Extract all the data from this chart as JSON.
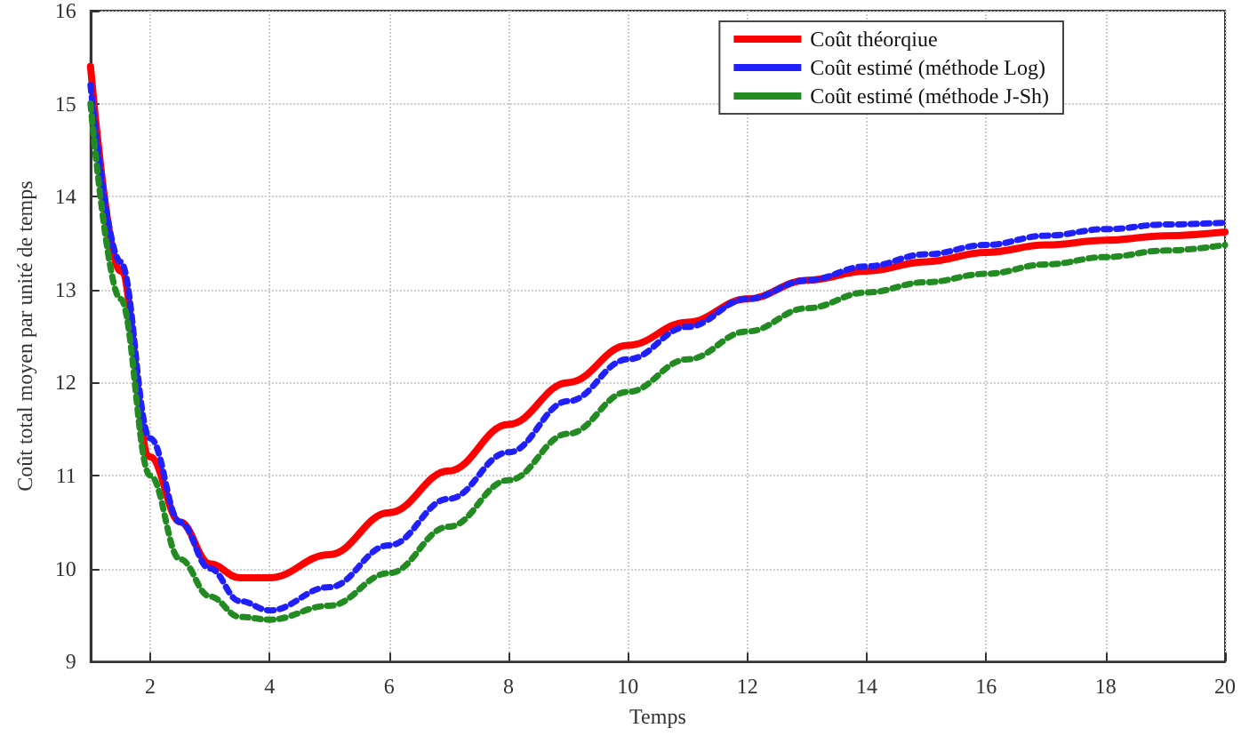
{
  "chart_data": {
    "type": "line",
    "xlabel": "Temps",
    "ylabel": "Coût total moyen par unité de temps",
    "x": [
      1,
      1.5,
      2,
      2.5,
      3,
      3.5,
      4,
      5,
      6,
      7,
      8,
      9,
      10,
      11,
      12,
      13,
      14,
      15,
      16,
      17,
      18,
      19,
      20
    ],
    "series": [
      {
        "name": "Coût théorqiue",
        "color": "#ff0000",
        "line_style": "solid",
        "values": [
          15.4,
          13.2,
          11.2,
          10.5,
          10.05,
          9.9,
          9.9,
          10.15,
          10.6,
          11.05,
          11.55,
          12.0,
          12.4,
          12.65,
          12.9,
          13.1,
          13.2,
          13.3,
          13.4,
          13.48,
          13.53,
          13.58,
          13.62
        ]
      },
      {
        "name": "Coût estimé (méthode Log)",
        "color": "#2020ff",
        "line_style": "dotted",
        "values": [
          15.2,
          13.3,
          11.4,
          10.5,
          10.0,
          9.65,
          9.55,
          9.8,
          10.25,
          10.75,
          11.25,
          11.8,
          12.25,
          12.6,
          12.9,
          13.1,
          13.25,
          13.38,
          13.48,
          13.58,
          13.65,
          13.7,
          13.72
        ]
      },
      {
        "name": "Coût estimé (méthode J-Sh)",
        "color": "#228b22",
        "line_style": "dotted",
        "values": [
          15.0,
          12.9,
          11.0,
          10.1,
          9.7,
          9.48,
          9.45,
          9.6,
          9.95,
          10.45,
          10.95,
          11.45,
          11.9,
          12.25,
          12.55,
          12.8,
          12.97,
          13.08,
          13.17,
          13.27,
          13.35,
          13.42,
          13.48
        ]
      }
    ],
    "xlim": [
      1,
      20
    ],
    "xticks": [
      2,
      4,
      6,
      8,
      10,
      12,
      14,
      16,
      18,
      20
    ],
    "ylim": [
      9,
      16
    ],
    "yticks": [
      9,
      10,
      11,
      12,
      13,
      14,
      15,
      16
    ],
    "grid": true,
    "legend": "top right",
    "marker": "none"
  }
}
